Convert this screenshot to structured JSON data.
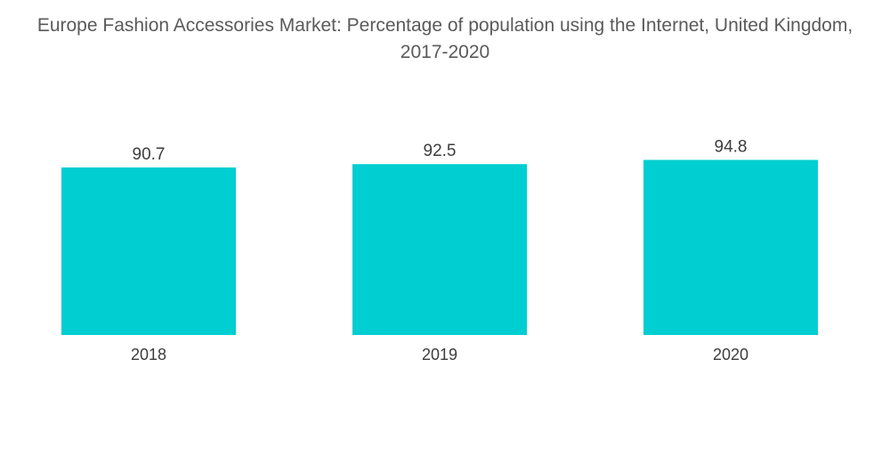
{
  "chart_data": {
    "type": "bar",
    "title": "Europe Fashion Accessories Market: Percentage of population using the Internet, United Kingdom, 2017-2020",
    "categories": [
      "2018",
      "2019",
      "2020"
    ],
    "values": [
      90.7,
      92.5,
      94.8
    ],
    "value_labels": [
      "90.7",
      "92.5",
      "94.8"
    ],
    "xlabel": "",
    "ylabel": "",
    "ylim": [
      0,
      100
    ],
    "grid": false,
    "legend": "none",
    "bar_color": "#00CED1"
  }
}
